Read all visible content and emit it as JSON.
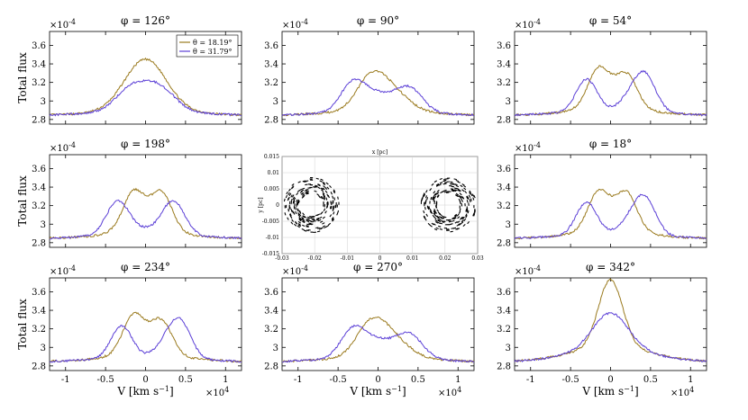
{
  "figure": {
    "ylabel": "Total flux",
    "xlabel": "V [km s",
    "xlabel_sup": "−1",
    "xlabel_close": "]",
    "y_exponent": "×10",
    "y_exponent_sup": "-4",
    "x_exponent": "×10",
    "x_exponent_sup": "4"
  },
  "colors": {
    "theta1": "#9a7a1e",
    "theta2": "#5b3fd6"
  },
  "legend": {
    "entries": [
      "θ = 18.19°",
      "θ = 31.79°"
    ]
  },
  "chart_data": [
    {
      "type": "line",
      "title": "φ = 126°",
      "xlim": [
        -12000,
        12000
      ],
      "ylim": [
        2.75,
        3.75
      ],
      "xticks": [
        "-1",
        "-0.5",
        "0",
        "0.5",
        "1"
      ],
      "yticks": [
        "2.8",
        "3",
        "3.2",
        "3.4",
        "3.6"
      ],
      "legend": true,
      "series": [
        {
          "name": "θ = 18.19°",
          "peaks": [
            {
              "c": 0,
              "a": 0.56,
              "w": 2600
            }
          ],
          "base": 2.84
        },
        {
          "name": "θ = 31.79°",
          "peaks": [
            {
              "c": -2000,
              "a": 0.2,
              "w": 1900
            },
            {
              "c": 2000,
              "a": 0.2,
              "w": 1900
            },
            {
              "c": 0,
              "a": 0.1,
              "w": 2000
            }
          ],
          "base": 2.84
        }
      ]
    },
    {
      "type": "line",
      "title": "φ = 90°",
      "xlim": [
        -12000,
        12000
      ],
      "ylim": [
        2.75,
        3.75
      ],
      "xticks": [
        "-1",
        "-0.5",
        "0",
        "0.5",
        "1"
      ],
      "yticks": [
        "2.8",
        "3",
        "3.2",
        "3.4",
        "3.6"
      ],
      "series": [
        {
          "name": "θ = 18.19°",
          "peaks": [
            {
              "c": -1000,
              "a": 0.3,
              "w": 1800
            },
            {
              "c": 1500,
              "a": 0.22,
              "w": 2200
            }
          ],
          "base": 2.84
        },
        {
          "name": "θ = 31.79°",
          "peaks": [
            {
              "c": -3200,
              "a": 0.28,
              "w": 1500
            },
            {
              "c": 4000,
              "a": 0.24,
              "w": 1600
            },
            {
              "c": 0,
              "a": 0.18,
              "w": 2200
            }
          ],
          "base": 2.84
        }
      ]
    },
    {
      "type": "line",
      "title": "φ = 54°",
      "xlim": [
        -12000,
        12000
      ],
      "ylim": [
        2.75,
        3.75
      ],
      "xticks": [
        "-1",
        "-0.5",
        "0",
        "0.5",
        "1"
      ],
      "yticks": [
        "2.8",
        "3",
        "3.2",
        "3.4",
        "3.6"
      ],
      "series": [
        {
          "name": "θ = 18.19°",
          "peaks": [
            {
              "c": -1500,
              "a": 0.37,
              "w": 1300
            },
            {
              "c": 2000,
              "a": 0.32,
              "w": 1300
            },
            {
              "c": 0,
              "a": 0.12,
              "w": 2600
            }
          ],
          "base": 2.84
        },
        {
          "name": "θ = 31.79°",
          "peaks": [
            {
              "c": -3000,
              "a": 0.35,
              "w": 1300
            },
            {
              "c": 4500,
              "a": 0.3,
              "w": 1300
            },
            {
              "c": 3000,
              "a": 0.2,
              "w": 1500
            }
          ],
          "base": 2.84
        }
      ]
    },
    {
      "type": "line",
      "title": "φ = 198°",
      "xlim": [
        -12000,
        12000
      ],
      "ylim": [
        2.75,
        3.75
      ],
      "xticks": [
        "-1",
        "-0.5",
        "0",
        "0.5",
        "1"
      ],
      "yticks": [
        "2.8",
        "3",
        "3.2",
        "3.4",
        "3.6"
      ],
      "series": [
        {
          "name": "θ = 18.19°",
          "peaks": [
            {
              "c": -1500,
              "a": 0.37,
              "w": 1300
            },
            {
              "c": 2000,
              "a": 0.37,
              "w": 1300
            },
            {
              "c": 0,
              "a": 0.12,
              "w": 2600
            }
          ],
          "base": 2.84
        },
        {
          "name": "θ = 31.79°",
          "peaks": [
            {
              "c": -3500,
              "a": 0.35,
              "w": 1400
            },
            {
              "c": 3500,
              "a": 0.35,
              "w": 1400
            },
            {
              "c": 0,
              "a": 0.05,
              "w": 2600
            }
          ],
          "base": 2.84
        }
      ]
    },
    {
      "type": "scatter",
      "title": "",
      "xlabel": "x [pc]",
      "ylabel": "y [pc]",
      "xlim": [
        -0.03,
        0.03
      ],
      "ylim": [
        -0.015,
        0.015
      ],
      "xticks": [
        "-0.03",
        "-0.02",
        "-0.01",
        "0",
        "0.01",
        "0.02",
        "0.03"
      ],
      "yticks": [
        "-0.015",
        "-0.01",
        "-0.005",
        "0",
        "0.005",
        "0.01",
        "0.015"
      ],
      "rings": [
        {
          "cx": -0.021,
          "cy": 0,
          "r_in": 0.0035,
          "r_out": 0.0085
        },
        {
          "cx": 0.021,
          "cy": 0,
          "r_in": 0.0035,
          "r_out": 0.0085
        }
      ]
    },
    {
      "type": "line",
      "title": "φ = 18°",
      "xlim": [
        -12000,
        12000
      ],
      "ylim": [
        2.75,
        3.75
      ],
      "xticks": [
        "-1",
        "-0.5",
        "0",
        "0.5",
        "1"
      ],
      "yticks": [
        "2.8",
        "3",
        "3.2",
        "3.4",
        "3.6"
      ],
      "series": [
        {
          "name": "θ = 18.19°",
          "peaks": [
            {
              "c": -1500,
              "a": 0.37,
              "w": 1300
            },
            {
              "c": 2000,
              "a": 0.37,
              "w": 1300
            },
            {
              "c": 0,
              "a": 0.12,
              "w": 2600
            }
          ],
          "base": 2.84
        },
        {
          "name": "θ = 31.79°",
          "peaks": [
            {
              "c": -3000,
              "a": 0.35,
              "w": 1300
            },
            {
              "c": 4500,
              "a": 0.3,
              "w": 1300
            },
            {
              "c": 3000,
              "a": 0.2,
              "w": 1500
            }
          ],
          "base": 2.84
        }
      ]
    },
    {
      "type": "line",
      "title": "φ = 234°",
      "xlim": [
        -12000,
        12000
      ],
      "ylim": [
        2.75,
        3.75
      ],
      "xticks": [
        "-1",
        "-0.5",
        "0",
        "0.5",
        "1"
      ],
      "yticks": [
        "2.8",
        "3",
        "3.2",
        "3.4",
        "3.6"
      ],
      "series": [
        {
          "name": "θ = 18.19°",
          "peaks": [
            {
              "c": -1500,
              "a": 0.37,
              "w": 1300
            },
            {
              "c": 2000,
              "a": 0.32,
              "w": 1300
            },
            {
              "c": 0,
              "a": 0.12,
              "w": 2600
            }
          ],
          "base": 2.84
        },
        {
          "name": "θ = 31.79°",
          "peaks": [
            {
              "c": -3000,
              "a": 0.35,
              "w": 1300
            },
            {
              "c": 4500,
              "a": 0.3,
              "w": 1300
            },
            {
              "c": 3000,
              "a": 0.2,
              "w": 1500
            }
          ],
          "base": 2.84
        }
      ]
    },
    {
      "type": "line",
      "title": "φ = 270°",
      "xlim": [
        -12000,
        12000
      ],
      "ylim": [
        2.75,
        3.75
      ],
      "xticks": [
        "-1",
        "-0.5",
        "0",
        "0.5",
        "1"
      ],
      "yticks": [
        "2.8",
        "3",
        "3.2",
        "3.4",
        "3.6"
      ],
      "series": [
        {
          "name": "θ = 18.19°",
          "peaks": [
            {
              "c": -1000,
              "a": 0.3,
              "w": 1800
            },
            {
              "c": 1500,
              "a": 0.22,
              "w": 2200
            }
          ],
          "base": 2.84
        },
        {
          "name": "θ = 31.79°",
          "peaks": [
            {
              "c": -3200,
              "a": 0.28,
              "w": 1500
            },
            {
              "c": 4000,
              "a": 0.24,
              "w": 1600
            },
            {
              "c": 0,
              "a": 0.18,
              "w": 2200
            }
          ],
          "base": 2.84
        }
      ]
    },
    {
      "type": "line",
      "title": "φ = 342°",
      "xlim": [
        -12000,
        12000
      ],
      "ylim": [
        2.75,
        3.75
      ],
      "xticks": [
        "-1",
        "-0.5",
        "0",
        "0.5",
        "1"
      ],
      "yticks": [
        "2.8",
        "3",
        "3.2",
        "3.4",
        "3.6"
      ],
      "series": [
        {
          "name": "θ = 18.19°",
          "peaks": [
            {
              "c": 0,
              "a": 0.72,
              "w": 1500
            },
            {
              "c": 0,
              "a": 0.12,
              "w": 4500
            }
          ],
          "base": 2.84
        },
        {
          "name": "θ = 31.79°",
          "peaks": [
            {
              "c": 0,
              "a": 0.38,
              "w": 2200
            },
            {
              "c": 0,
              "a": 0.1,
              "w": 4500
            }
          ],
          "base": 2.84
        }
      ]
    }
  ]
}
